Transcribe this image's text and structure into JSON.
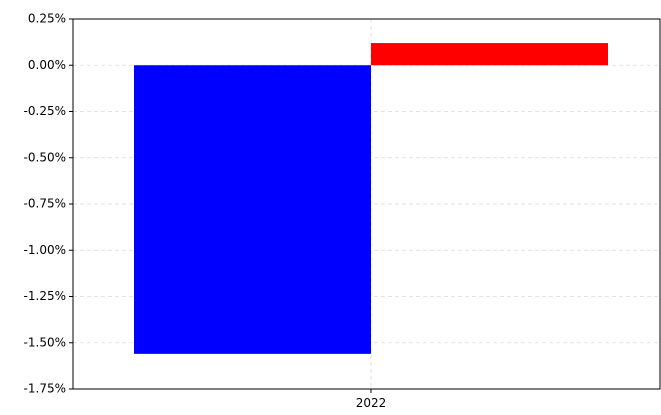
{
  "chart_data": {
    "type": "bar",
    "categories": [
      "2022"
    ],
    "series": [
      {
        "values": [
          -1.56
        ],
        "color": "#0000ff"
      },
      {
        "values": [
          0.12
        ],
        "color": "#ff0000"
      }
    ],
    "yticks": [
      0.25,
      0.0,
      -0.25,
      -0.5,
      -0.75,
      -1.0,
      -1.25,
      -1.5,
      -1.75
    ],
    "ytick_labels": [
      "0.25%",
      "0.00%",
      "-0.25%",
      "-0.50%",
      "-0.75%",
      "-1.00%",
      "-1.25%",
      "-1.50%",
      "-1.75%"
    ],
    "ylim": [
      -1.75,
      0.25
    ],
    "grid": true,
    "xlabel": "",
    "ylabel": "",
    "title": ""
  }
}
